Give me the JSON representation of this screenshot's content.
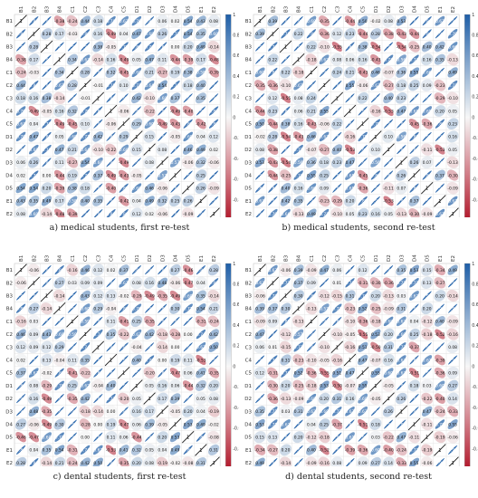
{
  "figure": {
    "variables": [
      "B1",
      "B2",
      "B3",
      "B4",
      "C1",
      "C2",
      "C3",
      "C4",
      "C5",
      "D1",
      "D2",
      "D3",
      "D4",
      "D5",
      "E1",
      "E2"
    ],
    "colorbar_ticks": [
      "1",
      "0.8",
      "0.6",
      "0.4",
      "0.2",
      "0",
      "-0.2",
      "-0.4",
      "-0.6",
      "-0.8",
      "-1"
    ],
    "panels": [
      {
        "caption": "a) medical students, first re-test",
        "seed": 11
      },
      {
        "caption": "b) medical students, second re-test",
        "seed": 29
      },
      {
        "caption": "c) dental students, first re-test",
        "seed": 47
      },
      {
        "caption": "d) dental students, second re-test",
        "seed": 83
      }
    ]
  },
  "colors": {
    "positive": "#1f5fa8",
    "negative": "#b2182b",
    "neutral": "#f7f7f7"
  },
  "chart_data": {
    "type": "heatmap",
    "variables": [
      "B1",
      "B2",
      "B3",
      "B4",
      "C1",
      "C2",
      "C3",
      "C4",
      "C5",
      "D1",
      "D2",
      "D3",
      "D4",
      "D5",
      "E1",
      "E2"
    ],
    "color_range": [
      -1,
      1
    ],
    "diagonal": 1,
    "note": "correlation matrices shown with ellipses and numeric labels"
  }
}
